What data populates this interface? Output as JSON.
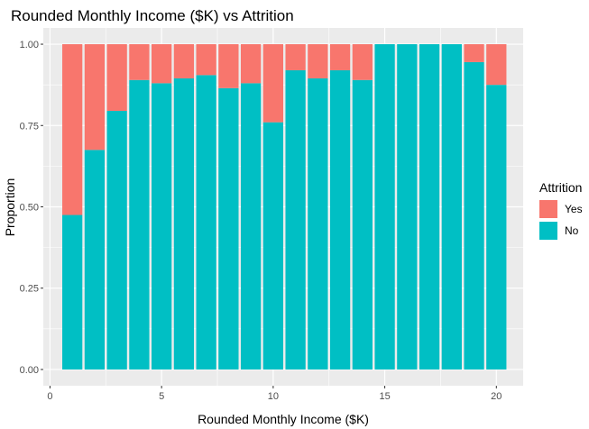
{
  "chart_data": {
    "type": "bar",
    "stacked": true,
    "title": "Rounded Monthly Income ($K) vs Attrition",
    "xlabel": "Rounded Monthly Income ($K)",
    "ylabel": "Proportion",
    "x": [
      1,
      2,
      3,
      4,
      5,
      6,
      7,
      8,
      9,
      10,
      11,
      12,
      13,
      14,
      15,
      16,
      17,
      18,
      19,
      20
    ],
    "xlim": [
      -0.3,
      21.2
    ],
    "ylim": [
      -0.05,
      1.05
    ],
    "x_ticks": [
      0,
      5,
      10,
      15,
      20
    ],
    "x_tick_labels": [
      "0",
      "5",
      "10",
      "15",
      "20"
    ],
    "y_ticks": [
      0,
      0.25,
      0.5,
      0.75,
      1.0
    ],
    "y_tick_labels": [
      "0.00",
      "0.25",
      "0.50",
      "0.75",
      "1.00"
    ],
    "series": [
      {
        "name": "No",
        "color": "#00BFC4",
        "values": [
          0.475,
          0.675,
          0.795,
          0.89,
          0.88,
          0.895,
          0.905,
          0.865,
          0.88,
          0.76,
          0.92,
          0.895,
          0.92,
          0.89,
          1.0,
          1.0,
          1.0,
          1.0,
          0.945,
          0.875
        ]
      },
      {
        "name": "Yes",
        "color": "#F8766D",
        "values": [
          0.525,
          0.325,
          0.205,
          0.11,
          0.12,
          0.105,
          0.095,
          0.135,
          0.12,
          0.24,
          0.08,
          0.105,
          0.08,
          0.11,
          0.0,
          0.0,
          0.0,
          0.0,
          0.055,
          0.125
        ]
      }
    ],
    "legend": {
      "title": "Attrition",
      "position": "right",
      "entries": [
        {
          "label": "Yes",
          "color": "#F8766D"
        },
        {
          "label": "No",
          "color": "#00BFC4"
        }
      ]
    },
    "grid": true,
    "panel_background": "#EBEBEB"
  }
}
